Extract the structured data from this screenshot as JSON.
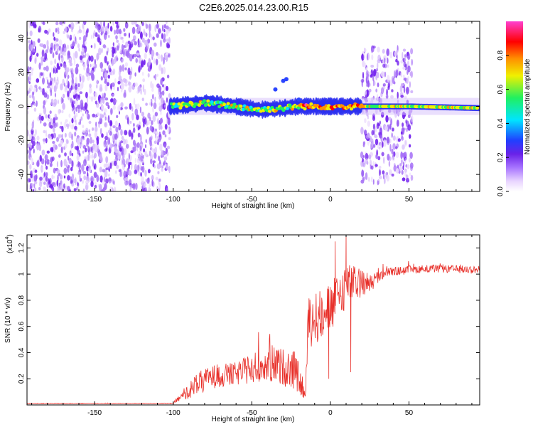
{
  "title": "C2E6.2025.014.23.00.R15",
  "chart_data": [
    {
      "type": "heatmap",
      "xlabel": "Height of straight line (km)",
      "ylabel": "Frequency (Hz)",
      "xlim": [
        -193,
        95
      ],
      "ylim": [
        -50,
        50
      ],
      "xticks": [
        -150,
        -100,
        -50,
        0,
        50
      ],
      "yticks": [
        -40,
        -20,
        0,
        20,
        40
      ],
      "colorbar": {
        "label": "Normalized spectral amplitude",
        "range": [
          0,
          1
        ],
        "ticks": [
          0.0,
          0.2,
          0.4,
          0.6,
          0.8
        ],
        "colors": [
          "#ffffff",
          "#e9d5ff",
          "#7a2cf0",
          "#2040ff",
          "#00e5ff",
          "#20f060",
          "#f0f000",
          "#ff9000",
          "#ff0000",
          "#ff40d0"
        ]
      },
      "regions": [
        {
          "x": [
            -193,
            -102
          ],
          "y": [
            -50,
            50
          ],
          "level": 0.15,
          "kind": "noise"
        },
        {
          "x": [
            -102,
            20
          ],
          "y": [
            -4,
            4
          ],
          "level": 0.45,
          "kind": "band"
        },
        {
          "x": [
            20,
            52
          ],
          "y": [
            -45,
            35
          ],
          "level": 0.15,
          "kind": "noise"
        },
        {
          "x": [
            52,
            95
          ],
          "y": [
            -2,
            2
          ],
          "level": 0.55,
          "kind": "band"
        }
      ],
      "band_centerline": [
        {
          "x": -102,
          "y": 0
        },
        {
          "x": -90,
          "y": 1
        },
        {
          "x": -80,
          "y": 2
        },
        {
          "x": -60,
          "y": 0
        },
        {
          "x": -45,
          "y": -2
        },
        {
          "x": -30,
          "y": -1
        },
        {
          "x": -20,
          "y": 0
        },
        {
          "x": 0,
          "y": 0
        },
        {
          "x": 20,
          "y": 0
        },
        {
          "x": 50,
          "y": 0
        },
        {
          "x": 95,
          "y": -1
        }
      ]
    },
    {
      "type": "line",
      "xlabel": "Height of straight line (km)",
      "ylabel": "SNR (10 * v/v)",
      "yscale_label": "(x10",
      "yscale_exp": "4",
      "yscale_close": ")",
      "xlim": [
        -193,
        95
      ],
      "ylim": [
        0,
        1.3
      ],
      "xticks": [
        -150,
        -100,
        -50,
        0,
        50
      ],
      "yticks": [
        0.2,
        0.4,
        0.6,
        0.8,
        1.0,
        1.2
      ],
      "color": "#e8302a",
      "envelope": [
        {
          "x": -193,
          "base": 0.01,
          "spread": 0.005
        },
        {
          "x": -100,
          "base": 0.01,
          "spread": 0.005
        },
        {
          "x": -95,
          "base": 0.05,
          "spread": 0.06
        },
        {
          "x": -85,
          "base": 0.12,
          "spread": 0.18
        },
        {
          "x": -75,
          "base": 0.18,
          "spread": 0.18
        },
        {
          "x": -60,
          "base": 0.2,
          "spread": 0.18
        },
        {
          "x": -45,
          "base": 0.25,
          "spread": 0.25
        },
        {
          "x": -35,
          "base": 0.25,
          "spread": 0.28
        },
        {
          "x": -22,
          "base": 0.2,
          "spread": 0.3
        },
        {
          "x": -16,
          "base": 0.05,
          "spread": 0.05
        },
        {
          "x": -14,
          "base": 0.55,
          "spread": 0.4
        },
        {
          "x": 0,
          "base": 0.65,
          "spread": 0.4
        },
        {
          "x": 10,
          "base": 0.85,
          "spread": 0.35
        },
        {
          "x": 25,
          "base": 0.9,
          "spread": 0.15
        },
        {
          "x": 35,
          "base": 1.0,
          "spread": 0.07
        },
        {
          "x": 60,
          "base": 1.03,
          "spread": 0.06
        },
        {
          "x": 95,
          "base": 1.02,
          "spread": 0.06
        }
      ],
      "peaks": [
        {
          "x": 10,
          "y": 1.3
        },
        {
          "x": 3,
          "y": 1.25
        },
        {
          "x": -1,
          "y": 0.2
        },
        {
          "x": 13,
          "y": 0.25
        }
      ]
    }
  ]
}
